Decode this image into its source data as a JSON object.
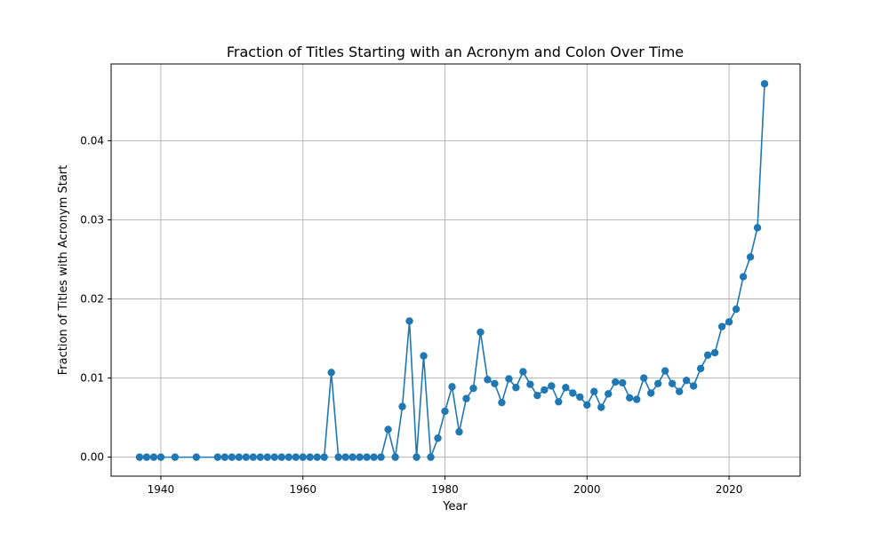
{
  "chart_data": {
    "type": "line",
    "title": "Fraction of Titles Starting with an Acronym and Colon Over Time",
    "xlabel": "Year",
    "ylabel": "Fraction of Titles with Acronym Start",
    "xlim": [
      1933,
      2030
    ],
    "ylim": [
      -0.0024,
      0.0497
    ],
    "xticks": [
      1940,
      1960,
      1980,
      2000,
      2020
    ],
    "yticks": [
      0.0,
      0.01,
      0.02,
      0.03,
      0.04
    ],
    "ytick_labels": [
      "0.00",
      "0.01",
      "0.02",
      "0.03",
      "0.04"
    ],
    "grid": true,
    "marker": "circle",
    "color": "#1f77b4",
    "x": [
      1937,
      1938,
      1939,
      1940,
      1942,
      1945,
      1948,
      1949,
      1950,
      1951,
      1952,
      1953,
      1954,
      1955,
      1956,
      1957,
      1958,
      1959,
      1960,
      1961,
      1962,
      1963,
      1964,
      1965,
      1966,
      1967,
      1968,
      1969,
      1970,
      1971,
      1972,
      1973,
      1974,
      1975,
      1976,
      1977,
      1978,
      1979,
      1980,
      1981,
      1982,
      1983,
      1984,
      1985,
      1986,
      1987,
      1988,
      1989,
      1990,
      1991,
      1992,
      1993,
      1994,
      1995,
      1996,
      1997,
      1998,
      1999,
      2000,
      2001,
      2002,
      2003,
      2004,
      2005,
      2006,
      2007,
      2008,
      2009,
      2010,
      2011,
      2012,
      2013,
      2014,
      2015,
      2016,
      2017,
      2018,
      2019,
      2020,
      2021,
      2022,
      2023,
      2024,
      2025
    ],
    "y": [
      0.0,
      0.0,
      0.0,
      0.0,
      0.0,
      0.0,
      0.0,
      0.0,
      0.0,
      0.0,
      0.0,
      0.0,
      0.0,
      0.0,
      0.0,
      0.0,
      0.0,
      0.0,
      0.0,
      0.0,
      0.0,
      0.0,
      0.0107,
      0.0,
      0.0,
      0.0,
      0.0,
      0.0,
      0.0,
      0.0,
      0.0035,
      0.0,
      0.0064,
      0.0172,
      0.0,
      0.0128,
      0.0,
      0.0024,
      0.0058,
      0.0089,
      0.0032,
      0.0074,
      0.0087,
      0.0158,
      0.0098,
      0.0093,
      0.0069,
      0.0099,
      0.0088,
      0.0108,
      0.0092,
      0.0078,
      0.0085,
      0.009,
      0.007,
      0.0088,
      0.0081,
      0.0076,
      0.0066,
      0.0083,
      0.0063,
      0.008,
      0.0095,
      0.0094,
      0.0075,
      0.0073,
      0.01,
      0.0081,
      0.0093,
      0.0109,
      0.0093,
      0.0083,
      0.0097,
      0.009,
      0.0112,
      0.0129,
      0.0132,
      0.0165,
      0.0171,
      0.0187,
      0.0228,
      0.0253,
      0.029,
      0.0472
    ]
  }
}
